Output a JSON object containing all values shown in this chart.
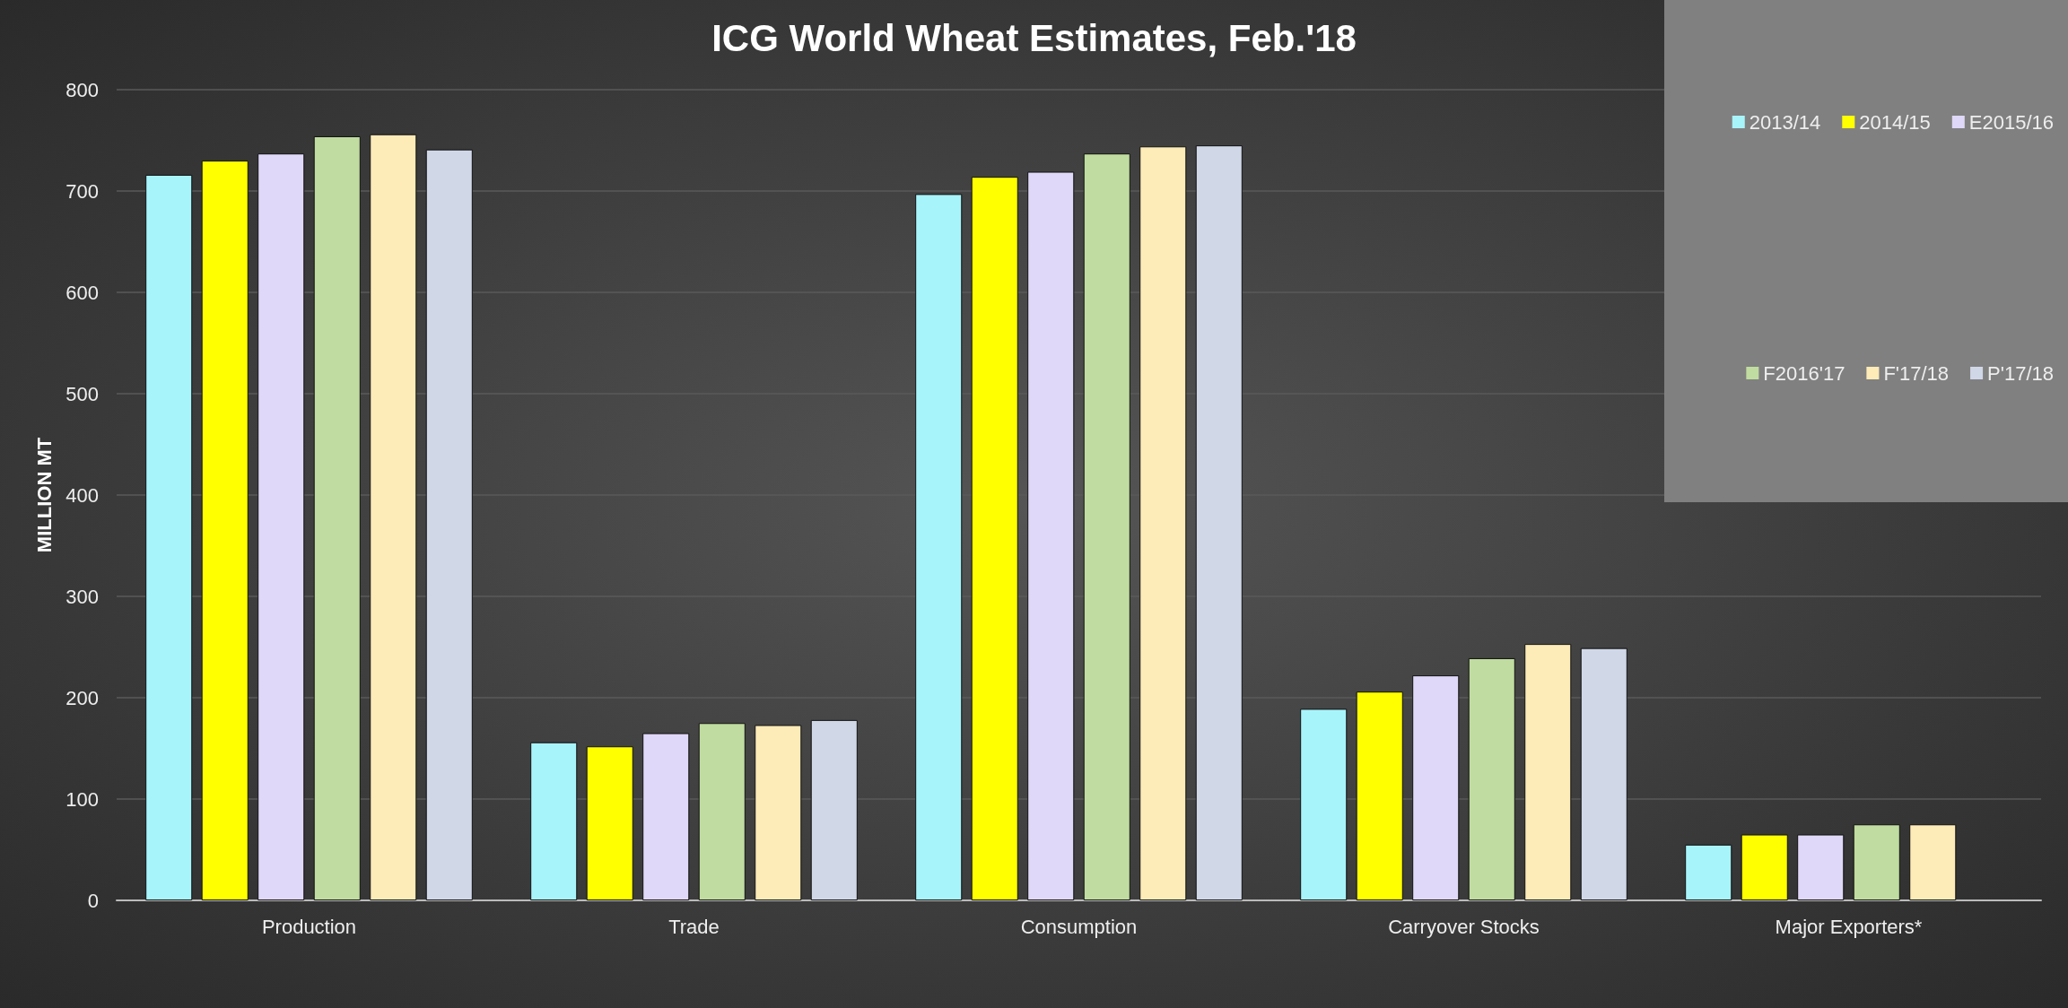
{
  "chart_data": {
    "type": "bar",
    "title": "ICG World Wheat Estimates, Feb.'18",
    "ylabel": "MILLION MT",
    "categories": [
      "Production",
      "Trade",
      "Consumption",
      "Carryover Stocks",
      "Major Exporters*"
    ],
    "series": [
      {
        "name": "2013/14",
        "color": "#a8f4fb",
        "values": [
          716,
          156,
          697,
          189,
          55
        ]
      },
      {
        "name": "2014/15",
        "color": "#ffff00",
        "values": [
          730,
          152,
          714,
          206,
          65
        ]
      },
      {
        "name": "E2015/16",
        "color": "#e0d8f8",
        "values": [
          737,
          165,
          719,
          222,
          65
        ]
      },
      {
        "name": "F2016'17",
        "color": "#c0dca0",
        "values": [
          754,
          175,
          737,
          239,
          75
        ]
      },
      {
        "name": "F'17/18",
        "color": "#fdebb8",
        "values": [
          756,
          173,
          744,
          253,
          75
        ]
      },
      {
        "name": "P'17/18",
        "color": "#d0d8e8",
        "values": [
          741,
          178,
          745,
          249,
          null
        ]
      }
    ],
    "ylim": [
      0,
      800
    ],
    "yticks": [
      0,
      100,
      200,
      300,
      400,
      500,
      600,
      700,
      800
    ],
    "grid": "y",
    "legend": "top right"
  }
}
